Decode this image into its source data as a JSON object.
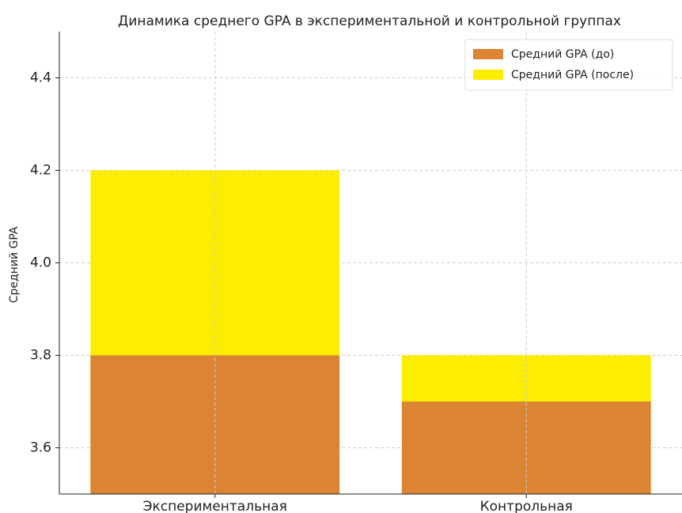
{
  "chart_data": {
    "type": "bar",
    "title": "Динамика среднего GPA в экспериментальной и контрольной группах",
    "ylabel": "Средний GPA",
    "categories": [
      "Экспериментальная",
      "Контрольная"
    ],
    "series": [
      {
        "name": "Средний GPA (до)",
        "color": "#db8433",
        "values": [
          3.8,
          3.7
        ]
      },
      {
        "name": "Средний GPA (после)",
        "color": "#fded00",
        "values": [
          4.2,
          3.8
        ]
      }
    ],
    "ylim": [
      3.5,
      4.5
    ],
    "yticks": [
      3.6,
      3.8,
      {
        "value": 4,
        "label": "4.0"
      },
      4.2,
      4.4
    ],
    "grid": true,
    "legend": "upper right"
  }
}
